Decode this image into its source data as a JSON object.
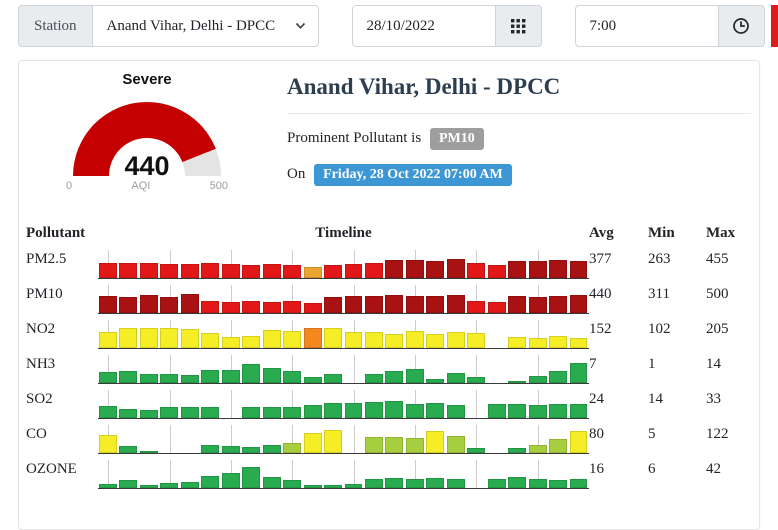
{
  "toolbar": {
    "station_label": "Station",
    "station_value": "Anand Vihar, Delhi - DPCC",
    "date_value": "28/10/2022",
    "time_value": "7:00"
  },
  "header": {
    "title": "Anand Vihar, Delhi - DPCC",
    "prominent_label": "Prominent Pollutant is",
    "prominent_value": "PM10",
    "on_label": "On",
    "datetime_value": "Friday, 28 Oct 2022 07:00 AM",
    "badge_gray": "#9e9e9e",
    "badge_blue": "#3d97d4"
  },
  "table": {
    "headers": {
      "pollutant": "Pollutant",
      "timeline": "Timeline",
      "avg": "Avg",
      "min": "Min",
      "max": "Max"
    }
  },
  "chart_data": {
    "gauge": {
      "type": "gauge",
      "status": "Severe",
      "value": 440,
      "min": 0,
      "max": 500,
      "min_label": "0",
      "axis_label": "AQI",
      "max_label": "500",
      "fill_color": "#c40000",
      "track_color": "#e4e4e4"
    },
    "palette": {
      "R": "#e21717",
      "D": "#a81212",
      "P": "#eaa42f",
      "O": "#f5871f",
      "Y": "#f5ee27",
      "G": "#29ab4f",
      "L": "#a6ce3e"
    },
    "note": "timelines: 24 hourly bars per pollutant; bar = [height 0-29 (0 = missing), color key]",
    "timelines": [
      {
        "name": "PM2.5",
        "avg": 377,
        "min": 263,
        "max": 455,
        "bars": [
          [
            15,
            "R"
          ],
          [
            15,
            "R"
          ],
          [
            15,
            "R"
          ],
          [
            14,
            "R"
          ],
          [
            14,
            "R"
          ],
          [
            15,
            "R"
          ],
          [
            14,
            "R"
          ],
          [
            13,
            "R"
          ],
          [
            14,
            "R"
          ],
          [
            13,
            "R"
          ],
          [
            11,
            "P"
          ],
          [
            13,
            "R"
          ],
          [
            14,
            "R"
          ],
          [
            15,
            "R"
          ],
          [
            18,
            "D"
          ],
          [
            18,
            "D"
          ],
          [
            17,
            "D"
          ],
          [
            19,
            "D"
          ],
          [
            15,
            "R"
          ],
          [
            13,
            "R"
          ],
          [
            17,
            "D"
          ],
          [
            17,
            "D"
          ],
          [
            18,
            "D"
          ],
          [
            17,
            "D"
          ]
        ]
      },
      {
        "name": "PM10",
        "avg": 440,
        "min": 311,
        "max": 500,
        "bars": [
          [
            17,
            "D"
          ],
          [
            16,
            "D"
          ],
          [
            18,
            "D"
          ],
          [
            16,
            "D"
          ],
          [
            19,
            "D"
          ],
          [
            12,
            "R"
          ],
          [
            11,
            "R"
          ],
          [
            12,
            "R"
          ],
          [
            11,
            "R"
          ],
          [
            12,
            "R"
          ],
          [
            10,
            "R"
          ],
          [
            16,
            "D"
          ],
          [
            17,
            "D"
          ],
          [
            17,
            "D"
          ],
          [
            18,
            "D"
          ],
          [
            17,
            "D"
          ],
          [
            17,
            "D"
          ],
          [
            18,
            "D"
          ],
          [
            12,
            "R"
          ],
          [
            11,
            "R"
          ],
          [
            17,
            "D"
          ],
          [
            16,
            "D"
          ],
          [
            17,
            "D"
          ],
          [
            18,
            "D"
          ]
        ]
      },
      {
        "name": "NO2",
        "avg": 152,
        "min": 102,
        "max": 205,
        "bars": [
          [
            16,
            "Y"
          ],
          [
            20,
            "Y"
          ],
          [
            20,
            "Y"
          ],
          [
            20,
            "Y"
          ],
          [
            19,
            "Y"
          ],
          [
            15,
            "Y"
          ],
          [
            11,
            "Y"
          ],
          [
            12,
            "Y"
          ],
          [
            18,
            "Y"
          ],
          [
            17,
            "Y"
          ],
          [
            20,
            "O"
          ],
          [
            20,
            "Y"
          ],
          [
            16,
            "Y"
          ],
          [
            16,
            "Y"
          ],
          [
            14,
            "Y"
          ],
          [
            17,
            "Y"
          ],
          [
            14,
            "Y"
          ],
          [
            16,
            "Y"
          ],
          [
            15,
            "Y"
          ],
          [
            0,
            "Y"
          ],
          [
            11,
            "Y"
          ],
          [
            10,
            "Y"
          ],
          [
            12,
            "Y"
          ],
          [
            10,
            "Y"
          ]
        ]
      },
      {
        "name": "NH3",
        "avg": 7,
        "min": 1,
        "max": 14,
        "bars": [
          [
            11,
            "G"
          ],
          [
            12,
            "G"
          ],
          [
            9,
            "G"
          ],
          [
            9,
            "G"
          ],
          [
            8,
            "G"
          ],
          [
            13,
            "G"
          ],
          [
            13,
            "G"
          ],
          [
            19,
            "G"
          ],
          [
            15,
            "G"
          ],
          [
            12,
            "G"
          ],
          [
            6,
            "G"
          ],
          [
            9,
            "G"
          ],
          [
            0,
            "G"
          ],
          [
            9,
            "G"
          ],
          [
            12,
            "G"
          ],
          [
            14,
            "G"
          ],
          [
            4,
            "G"
          ],
          [
            10,
            "G"
          ],
          [
            6,
            "G"
          ],
          [
            0,
            "G"
          ],
          [
            2,
            "G"
          ],
          [
            7,
            "G"
          ],
          [
            12,
            "G"
          ],
          [
            20,
            "G"
          ]
        ]
      },
      {
        "name": "SO2",
        "avg": 24,
        "min": 14,
        "max": 33,
        "bars": [
          [
            12,
            "G"
          ],
          [
            9,
            "G"
          ],
          [
            8,
            "G"
          ],
          [
            11,
            "G"
          ],
          [
            11,
            "G"
          ],
          [
            11,
            "G"
          ],
          [
            0,
            "G"
          ],
          [
            11,
            "G"
          ],
          [
            11,
            "G"
          ],
          [
            11,
            "G"
          ],
          [
            13,
            "G"
          ],
          [
            15,
            "G"
          ],
          [
            15,
            "G"
          ],
          [
            16,
            "G"
          ],
          [
            17,
            "G"
          ],
          [
            14,
            "G"
          ],
          [
            15,
            "G"
          ],
          [
            13,
            "G"
          ],
          [
            0,
            "G"
          ],
          [
            14,
            "G"
          ],
          [
            14,
            "G"
          ],
          [
            13,
            "G"
          ],
          [
            14,
            "G"
          ],
          [
            14,
            "G"
          ]
        ]
      },
      {
        "name": "CO",
        "avg": 80,
        "min": 5,
        "max": 122,
        "bars": [
          [
            18,
            "Y"
          ],
          [
            7,
            "G"
          ],
          [
            1,
            "G"
          ],
          [
            0,
            "G"
          ],
          [
            0,
            "G"
          ],
          [
            8,
            "G"
          ],
          [
            7,
            "G"
          ],
          [
            6,
            "G"
          ],
          [
            8,
            "G"
          ],
          [
            10,
            "L"
          ],
          [
            20,
            "Y"
          ],
          [
            23,
            "Y"
          ],
          [
            0,
            "G"
          ],
          [
            16,
            "L"
          ],
          [
            16,
            "L"
          ],
          [
            15,
            "L"
          ],
          [
            22,
            "Y"
          ],
          [
            17,
            "L"
          ],
          [
            5,
            "G"
          ],
          [
            0,
            "G"
          ],
          [
            5,
            "G"
          ],
          [
            8,
            "L"
          ],
          [
            14,
            "L"
          ],
          [
            22,
            "Y"
          ]
        ]
      },
      {
        "name": "OZONE",
        "avg": 16,
        "min": 6,
        "max": 42,
        "bars": [
          [
            4,
            "G"
          ],
          [
            8,
            "G"
          ],
          [
            3,
            "G"
          ],
          [
            5,
            "G"
          ],
          [
            6,
            "G"
          ],
          [
            12,
            "G"
          ],
          [
            15,
            "G"
          ],
          [
            21,
            "G"
          ],
          [
            11,
            "G"
          ],
          [
            8,
            "G"
          ],
          [
            3,
            "G"
          ],
          [
            3,
            "G"
          ],
          [
            4,
            "G"
          ],
          [
            9,
            "G"
          ],
          [
            10,
            "G"
          ],
          [
            9,
            "G"
          ],
          [
            10,
            "G"
          ],
          [
            9,
            "G"
          ],
          [
            0,
            "G"
          ],
          [
            9,
            "G"
          ],
          [
            11,
            "G"
          ],
          [
            9,
            "G"
          ],
          [
            8,
            "G"
          ],
          [
            9,
            "G"
          ]
        ]
      }
    ]
  }
}
